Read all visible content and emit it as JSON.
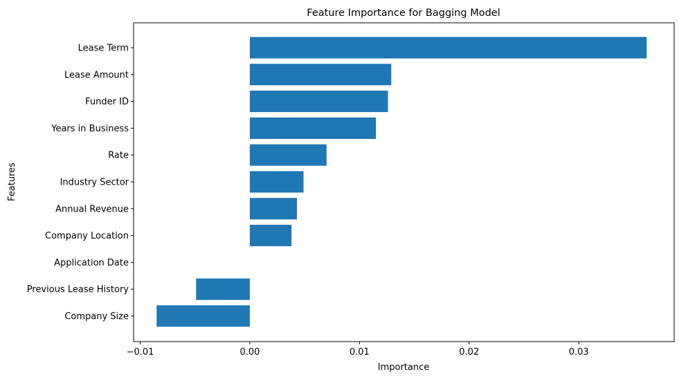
{
  "chart_data": {
    "type": "bar",
    "orientation": "horizontal",
    "title": "Feature Importance for Bagging Model",
    "xlabel": "Importance",
    "ylabel": "Features",
    "categories": [
      "Lease Term",
      "Lease Amount",
      "Funder ID",
      "Years in Business",
      "Rate",
      "Industry Sector",
      "Annual Revenue",
      "Company Location",
      "Application Date",
      "Previous Lease History",
      "Company Size"
    ],
    "values": [
      0.0362,
      0.0129,
      0.0126,
      0.0115,
      0.007,
      0.0049,
      0.0043,
      0.0038,
      0.0,
      -0.0049,
      -0.0085
    ],
    "xlim": [
      -0.0106,
      0.0387
    ],
    "xticks": [
      -0.01,
      0.0,
      0.01,
      0.02,
      0.03
    ],
    "xtick_labels": [
      "−0.01",
      "0.00",
      "0.01",
      "0.02",
      "0.03"
    ],
    "bar_color": "#1f77b4",
    "grid": false,
    "legend": false
  }
}
